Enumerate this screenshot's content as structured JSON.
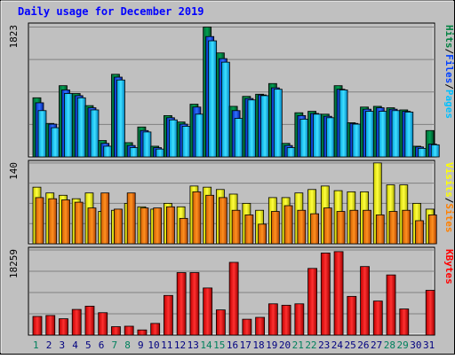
{
  "title": "Daily usage for December 2019",
  "colors": {
    "background": "#c0c0c0",
    "title": "#0000ff",
    "hits": "#008040",
    "files": "#0040ff",
    "pages": "#00c0ff",
    "visits": "#ffff00",
    "sites": "#ff8000",
    "kbytes": "#ff0000",
    "weekend_day": "#00805c",
    "weekday": "#000080"
  },
  "chart_data": [
    {
      "type": "bar",
      "name": "pages-files-hits",
      "ymax_label": "1823",
      "ylim": [
        0,
        1823
      ],
      "legend": [
        {
          "label": "Pages",
          "color_key": "pages"
        },
        {
          "label": "/",
          "color_key": "separator"
        },
        {
          "label": "Files",
          "color_key": "files"
        },
        {
          "label": "/",
          "color_key": "separator"
        },
        {
          "label": "Hits",
          "color_key": "hits"
        }
      ],
      "categories": [
        "1",
        "2",
        "3",
        "4",
        "5",
        "6",
        "7",
        "8",
        "9",
        "10",
        "11",
        "12",
        "13",
        "14",
        "15",
        "16",
        "17",
        "18",
        "19",
        "20",
        "21",
        "22",
        "23",
        "24",
        "25",
        "26",
        "27",
        "28",
        "29",
        "30",
        "31"
      ],
      "series": [
        {
          "name": "Hits",
          "values": [
            830,
            470,
            1000,
            890,
            720,
            230,
            1160,
            200,
            420,
            150,
            580,
            490,
            740,
            1823,
            1460,
            710,
            850,
            880,
            1030,
            190,
            620,
            640,
            600,
            1000,
            480,
            700,
            710,
            690,
            660,
            150,
            370
          ]
        },
        {
          "name": "Files",
          "values": [
            760,
            460,
            940,
            860,
            690,
            190,
            1120,
            160,
            370,
            130,
            550,
            460,
            700,
            1690,
            1380,
            650,
            820,
            870,
            970,
            160,
            580,
            610,
            570,
            950,
            470,
            670,
            690,
            670,
            640,
            140,
            180
          ]
        },
        {
          "name": "Pages",
          "values": [
            650,
            410,
            890,
            830,
            660,
            150,
            1080,
            130,
            350,
            110,
            520,
            430,
            600,
            1630,
            1330,
            540,
            800,
            860,
            950,
            130,
            530,
            600,
            550,
            940,
            460,
            640,
            640,
            650,
            630,
            120,
            170
          ]
        }
      ]
    },
    {
      "type": "bar",
      "name": "sites-visits",
      "ymax_label": "140",
      "ylim": [
        0,
        140
      ],
      "legend": [
        {
          "label": "Sites",
          "color_key": "sites"
        },
        {
          "label": "/",
          "color_key": "separator"
        },
        {
          "label": "Visits",
          "color_key": "visits"
        }
      ],
      "categories": [
        "1",
        "2",
        "3",
        "4",
        "5",
        "6",
        "7",
        "8",
        "9",
        "10",
        "11",
        "12",
        "13",
        "14",
        "15",
        "16",
        "17",
        "18",
        "19",
        "20",
        "21",
        "22",
        "23",
        "24",
        "25",
        "26",
        "27",
        "28",
        "29",
        "30",
        "31"
      ],
      "series": [
        {
          "name": "Visits",
          "values": [
            98,
            88,
            84,
            78,
            88,
            56,
            58,
            70,
            64,
            60,
            70,
            64,
            100,
            98,
            94,
            86,
            70,
            58,
            80,
            80,
            88,
            94,
            100,
            92,
            90,
            90,
            140,
            102,
            102,
            70,
            60
          ]
        },
        {
          "name": "Sites",
          "values": [
            80,
            78,
            76,
            72,
            62,
            88,
            60,
            88,
            62,
            62,
            64,
            44,
            90,
            84,
            80,
            58,
            50,
            34,
            56,
            66,
            58,
            52,
            62,
            56,
            58,
            58,
            50,
            56,
            58,
            40,
            50
          ]
        }
      ]
    },
    {
      "type": "bar",
      "name": "kbytes",
      "ymax_label": "18259",
      "ylim": [
        0,
        18259
      ],
      "legend": [
        {
          "label": "KBytes",
          "color_key": "kbytes"
        }
      ],
      "categories": [
        "1",
        "2",
        "3",
        "4",
        "5",
        "6",
        "7",
        "8",
        "9",
        "10",
        "11",
        "12",
        "13",
        "14",
        "15",
        "16",
        "17",
        "18",
        "19",
        "20",
        "21",
        "22",
        "23",
        "24",
        "25",
        "26",
        "27",
        "28",
        "29",
        "30",
        "31"
      ],
      "series": [
        {
          "name": "KBytes",
          "values": [
            4000,
            4200,
            3500,
            5500,
            6200,
            4800,
            1800,
            1900,
            1100,
            2500,
            8500,
            13400,
            13400,
            10100,
            5400,
            15600,
            3400,
            3800,
            6700,
            6400,
            6700,
            14300,
            17600,
            17900,
            8300,
            14700,
            7300,
            12900,
            5600,
            0,
            9600
          ]
        }
      ]
    }
  ],
  "x_axis": {
    "labels": [
      "1",
      "2",
      "3",
      "4",
      "5",
      "6",
      "7",
      "8",
      "9",
      "10",
      "11",
      "12",
      "13",
      "14",
      "15",
      "16",
      "17",
      "18",
      "19",
      "20",
      "21",
      "22",
      "23",
      "24",
      "25",
      "26",
      "27",
      "28",
      "29",
      "30",
      "31"
    ],
    "weekend_days": [
      "1",
      "7",
      "8",
      "14",
      "15",
      "21",
      "22",
      "28",
      "29"
    ]
  }
}
